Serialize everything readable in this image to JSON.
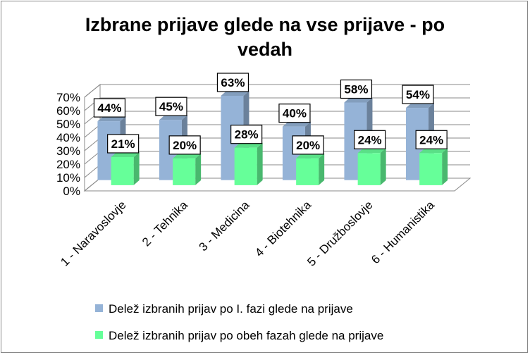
{
  "chart_data": {
    "type": "bar",
    "title": "Izbrane prijave glede na vse prijave - po vedah",
    "title_lines": [
      "Izbrane prijave glede na vse prijave - po",
      "vedah"
    ],
    "categories": [
      "1 - Naravoslovje",
      "2 - Tehnika",
      "3 - Medicina",
      "4 - Biotehnika",
      "5 - Družboslovje",
      "6 - Humanistika"
    ],
    "series": [
      {
        "name": "Delež izbranih prijav po I. fazi glede na prijave",
        "values": [
          44,
          45,
          63,
          40,
          58,
          54
        ],
        "labels": [
          "44%",
          "45%",
          "63%",
          "40%",
          "58%",
          "54%"
        ],
        "color": "#95B3D7"
      },
      {
        "name": "Delež izbranih prijav po obeh fazah glede na prijave",
        "values": [
          21,
          20,
          28,
          20,
          24,
          24
        ],
        "labels": [
          "21%",
          "20%",
          "28%",
          "20%",
          "24%",
          "24%"
        ],
        "color": "#66FF99"
      }
    ],
    "y_ticks": [
      "0%",
      "10%",
      "20%",
      "30%",
      "40%",
      "50%",
      "60%",
      "70%"
    ],
    "ylim": [
      0,
      70
    ],
    "grid": true,
    "legend_position": "bottom",
    "style": "3d-clustered-column"
  }
}
